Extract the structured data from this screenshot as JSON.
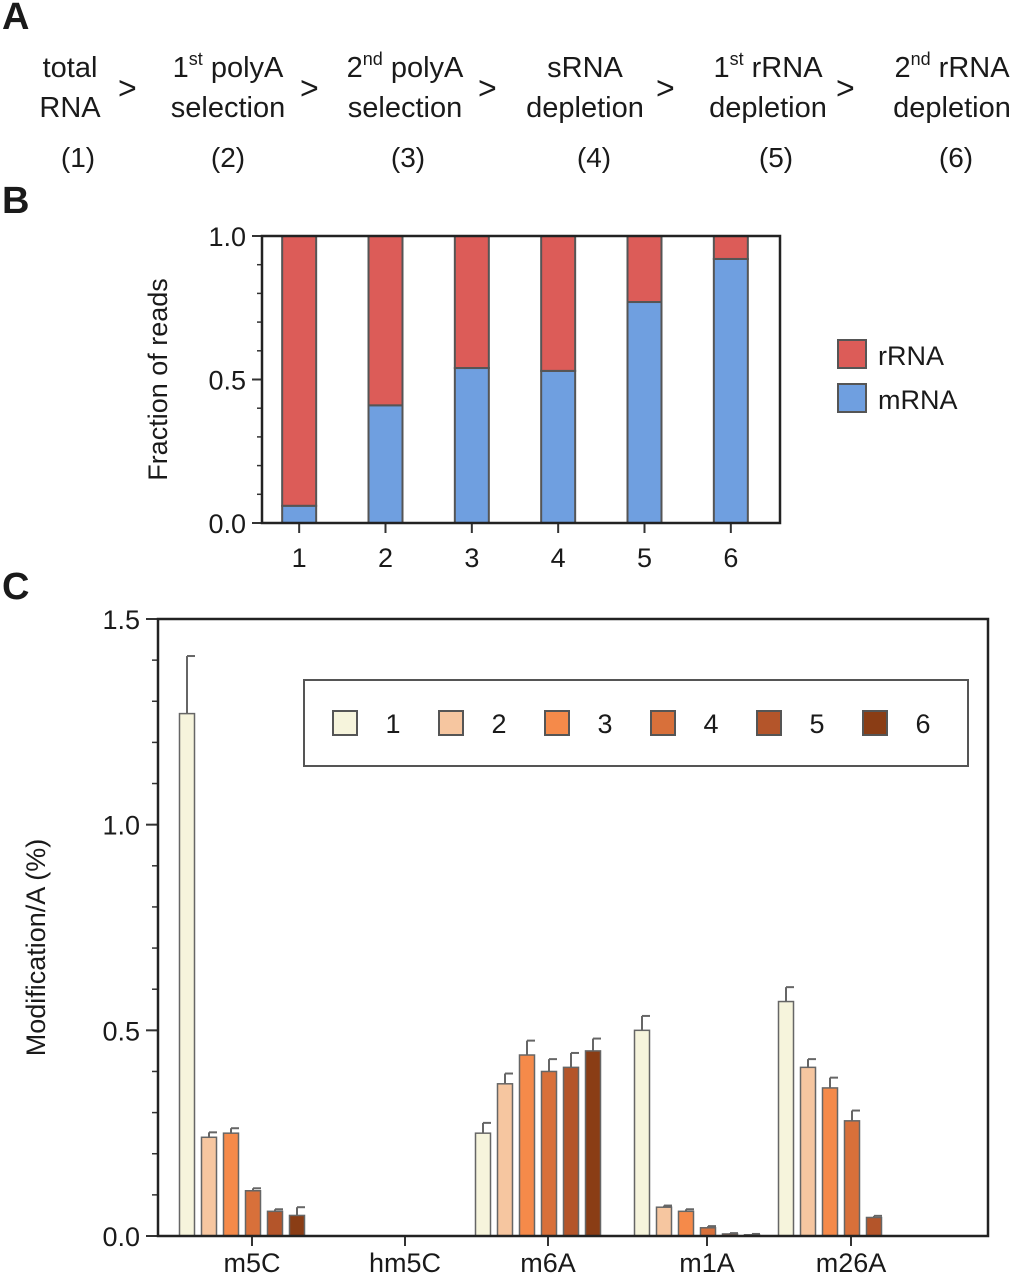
{
  "panel_a": {
    "letter": "A",
    "steps": [
      {
        "line1": "total",
        "line1_sup": "",
        "line1_rest": "",
        "line2": "RNA",
        "num": "(1)"
      },
      {
        "line1": "1",
        "line1_sup": "st",
        "line1_rest": " polyA",
        "line2": "selection",
        "num": "(2)"
      },
      {
        "line1": "2",
        "line1_sup": "nd",
        "line1_rest": " polyA",
        "line2": "selection",
        "num": "(3)"
      },
      {
        "line1": "sRNA",
        "line1_sup": "",
        "line1_rest": "",
        "line2": "depletion",
        "num": "(4)"
      },
      {
        "line1": "1",
        "line1_sup": "st",
        "line1_rest": " rRNA",
        "line2": "depletion",
        "num": "(5)"
      },
      {
        "line1": "2",
        "line1_sup": "nd",
        "line1_rest": " rRNA",
        "line2": "depletion",
        "num": "(6)"
      }
    ],
    "separator": ">"
  },
  "chart_data": [
    {
      "panel": "B",
      "type": "bar",
      "stacked": true,
      "title": "",
      "xlabel": "",
      "ylabel": "Fraction of reads",
      "categories": [
        "1",
        "2",
        "3",
        "4",
        "5",
        "6"
      ],
      "ylim": [
        0,
        1.0
      ],
      "yticks": [
        "0.0",
        "0.5",
        "1.0"
      ],
      "series": [
        {
          "name": "mRNA",
          "color": "#6f9fe0",
          "values": [
            0.06,
            0.41,
            0.54,
            0.53,
            0.77,
            0.92
          ]
        },
        {
          "name": "rRNA",
          "color": "#dc5c58",
          "values": [
            0.94,
            0.59,
            0.46,
            0.47,
            0.23,
            0.08
          ]
        }
      ],
      "legend": {
        "position": "right",
        "entries": [
          "rRNA",
          "mRNA"
        ]
      },
      "grid": false
    },
    {
      "panel": "C",
      "type": "bar",
      "stacked": false,
      "title": "",
      "xlabel": "",
      "ylabel": "Modification/A (%)",
      "categories": [
        "m5C",
        "hm5C",
        "m6A",
        "m1A",
        "m26A"
      ],
      "ylim": [
        0,
        1.5
      ],
      "yticks": [
        "0.0",
        "0.5",
        "1.0",
        "1.5"
      ],
      "series": [
        {
          "name": "1",
          "color": "#f6f4dc",
          "values": [
            1.27,
            0.0,
            0.25,
            0.5,
            0.57
          ],
          "errors": [
            0.14,
            0.0,
            0.025,
            0.035,
            0.035
          ]
        },
        {
          "name": "2",
          "color": "#f6c6a0",
          "values": [
            0.24,
            0.0,
            0.37,
            0.07,
            0.41
          ],
          "errors": [
            0.012,
            0.0,
            0.025,
            0.004,
            0.02
          ]
        },
        {
          "name": "3",
          "color": "#f58a4a",
          "values": [
            0.25,
            0.0,
            0.44,
            0.06,
            0.36
          ],
          "errors": [
            0.012,
            0.0,
            0.035,
            0.005,
            0.025
          ]
        },
        {
          "name": "4",
          "color": "#d8703a",
          "values": [
            0.11,
            0.0,
            0.4,
            0.02,
            0.28
          ],
          "errors": [
            0.006,
            0.0,
            0.03,
            0.004,
            0.025
          ]
        },
        {
          "name": "5",
          "color": "#b4552a",
          "values": [
            0.06,
            0.0,
            0.41,
            0.005,
            0.045
          ],
          "errors": [
            0.005,
            0.0,
            0.035,
            0.002,
            0.004
          ]
        },
        {
          "name": "6",
          "color": "#8a3d15",
          "values": [
            0.05,
            0.0,
            0.45,
            0.003,
            0.0
          ],
          "errors": [
            0.02,
            0.0,
            0.03,
            0.002,
            0.0
          ]
        }
      ],
      "legend": {
        "position": "top-right",
        "entries": [
          "1",
          "2",
          "3",
          "4",
          "5",
          "6"
        ]
      },
      "grid": false
    }
  ],
  "panel_b": {
    "letter": "B"
  },
  "panel_c": {
    "letter": "C"
  }
}
